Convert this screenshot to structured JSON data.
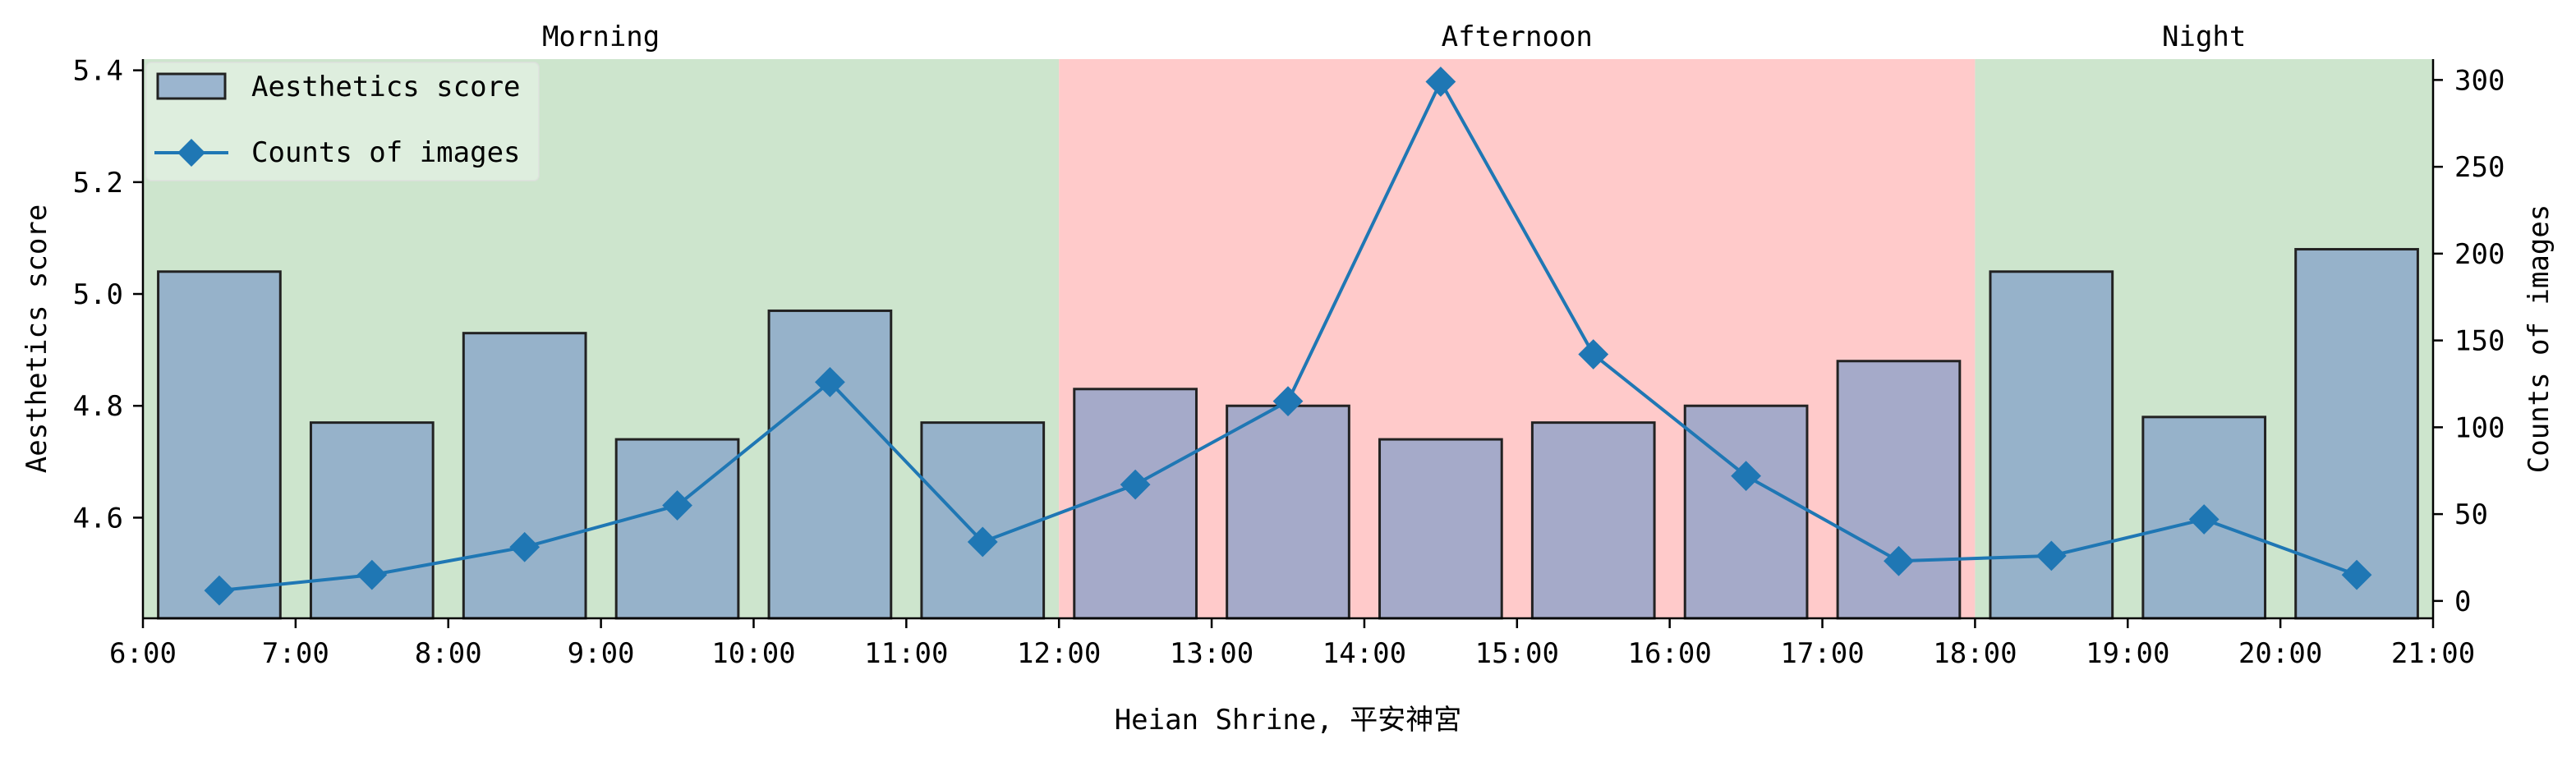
{
  "chart_data": {
    "type": "bar+line",
    "xlabel": "Heian Shrine, 平安神宮",
    "ylabel_left": "Aesthetics score",
    "ylabel_right": "Counts of images",
    "x_ticks": [
      "6:00",
      "7:00",
      "8:00",
      "9:00",
      "10:00",
      "11:00",
      "12:00",
      "13:00",
      "14:00",
      "15:00",
      "16:00",
      "17:00",
      "18:00",
      "19:00",
      "20:00",
      "21:00"
    ],
    "x_range": [
      6,
      21
    ],
    "y_left_range": [
      4.42,
      5.42
    ],
    "y_left_ticks": [
      "4.6",
      "4.8",
      "5.0",
      "5.2",
      "5.4"
    ],
    "y_right_range": [
      -10,
      312
    ],
    "y_right_ticks": [
      "0",
      "50",
      "100",
      "150",
      "200",
      "250",
      "300"
    ],
    "periods": [
      {
        "label": "Morning",
        "start": 6,
        "end": 12,
        "color": "#cde5cd"
      },
      {
        "label": "Afternoon",
        "start": 12,
        "end": 18,
        "color": "#ffcaca"
      },
      {
        "label": "Night",
        "start": 18,
        "end": 21,
        "color": "#cde5cd"
      }
    ],
    "hours": [
      6.5,
      7.5,
      8.5,
      9.5,
      10.5,
      11.5,
      12.5,
      13.5,
      14.5,
      15.5,
      16.5,
      17.5,
      18.5,
      19.5,
      20.5
    ],
    "series": [
      {
        "name": "Aesthetics score",
        "kind": "bar",
        "axis": "left",
        "color": "#7f9cc9",
        "values": [
          5.04,
          4.77,
          4.93,
          4.74,
          4.97,
          4.77,
          4.83,
          4.8,
          4.74,
          4.77,
          4.8,
          4.88,
          5.04,
          4.78,
          5.08
        ]
      },
      {
        "name": "Counts of images",
        "kind": "line",
        "axis": "right",
        "color": "#1f77b4",
        "values": [
          6,
          15,
          31,
          55,
          126,
          34,
          67,
          115,
          299,
          142,
          72,
          23,
          26,
          47,
          15
        ]
      }
    ],
    "legend_position": "top-left",
    "grid": false
  }
}
